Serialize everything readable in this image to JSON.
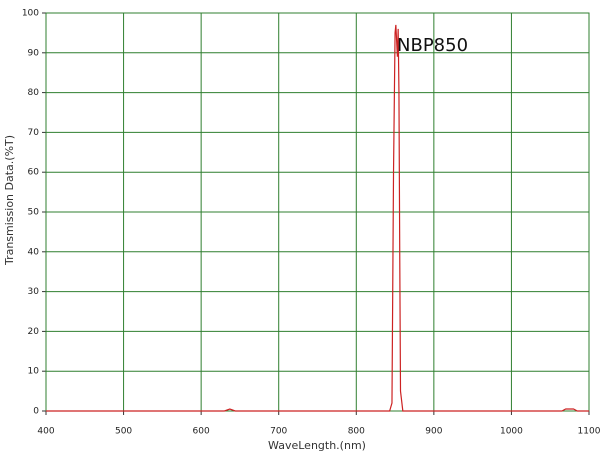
{
  "chart_data": {
    "type": "line",
    "annotation": "NBP850",
    "xlabel": "WaveLength.(nm)",
    "ylabel": "Transmission Data.(%T)",
    "x": [
      400,
      630,
      637,
      644,
      843,
      846,
      848,
      850,
      851,
      852,
      853,
      854,
      855,
      856,
      857,
      860,
      1065,
      1070,
      1080,
      1085,
      1100
    ],
    "values": [
      0,
      0,
      0.5,
      0,
      0,
      2,
      60,
      95,
      97,
      93,
      89,
      96,
      80,
      40,
      5,
      0,
      0,
      0.5,
      0.5,
      0,
      0
    ],
    "color": "#cc2222",
    "grid": true,
    "xlim": [
      400,
      1100
    ],
    "xticks": [
      400,
      500,
      600,
      700,
      800,
      900,
      1000,
      1100
    ],
    "ylim": [
      0,
      100
    ],
    "yticks": [
      0,
      10,
      20,
      30,
      40,
      50,
      60,
      70,
      80,
      90,
      100
    ]
  }
}
